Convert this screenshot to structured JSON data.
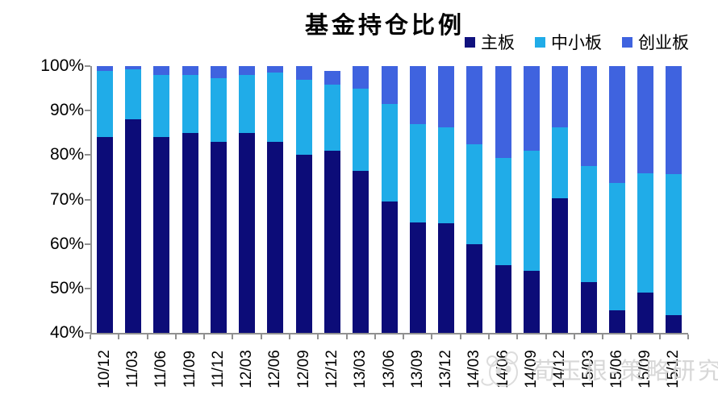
{
  "title": "基金持仓比例",
  "legend": [
    {
      "label": "主板",
      "color": "#10127E"
    },
    {
      "label": "中小板",
      "color": "#20ACE8"
    },
    {
      "label": "创业板",
      "color": "#3F63DF"
    }
  ],
  "watermark": {
    "text": "荀玉根-策略研究",
    "logo": "panda-logo",
    "color": "#d3d3d3"
  },
  "chart_data": {
    "type": "bar",
    "subtype": "stacked",
    "title": "基金持仓比例",
    "categories": [
      "10/12",
      "11/03",
      "11/06",
      "11/09",
      "11/12",
      "12/03",
      "12/06",
      "12/09",
      "12/12",
      "13/03",
      "13/06",
      "13/09",
      "13/12",
      "14/03",
      "14/06",
      "14/09",
      "14/12",
      "15/03",
      "15/06",
      "15/09",
      "15/12"
    ],
    "series": [
      {
        "name": "主板",
        "color": "#0C0C78",
        "values": [
          84,
          88,
          84,
          85,
          83,
          85,
          83,
          80,
          81,
          76.5,
          69.5,
          64.8,
          64.7,
          60,
          55.3,
          54,
          70.3,
          51.5,
          45,
          49,
          44
        ]
      },
      {
        "name": "中小板",
        "color": "#20ACE8",
        "values": [
          15,
          11.3,
          14,
          13,
          14.2,
          13,
          15.5,
          17,
          14.8,
          18.5,
          22,
          22.2,
          21.5,
          22.4,
          24,
          26.9,
          15.9,
          26,
          28.7,
          26.9,
          31.7
        ]
      },
      {
        "name": "创业板",
        "color": "#3F63DF",
        "values": [
          1,
          0.7,
          2,
          2,
          2.8,
          2,
          1.5,
          3,
          3.2,
          5,
          8.5,
          13,
          13.8,
          17.6,
          20.7,
          19.1,
          13.8,
          22.5,
          26.3,
          24.1,
          24.3
        ]
      }
    ],
    "xlabel": "",
    "ylabel": "",
    "ylim": [
      40,
      100
    ],
    "y_ticks": [
      "100%",
      "90%",
      "80%",
      "70%",
      "60%",
      "50%",
      "40%"
    ],
    "grid": false,
    "legend_position": "top-right",
    "axis_color": "#909090"
  }
}
